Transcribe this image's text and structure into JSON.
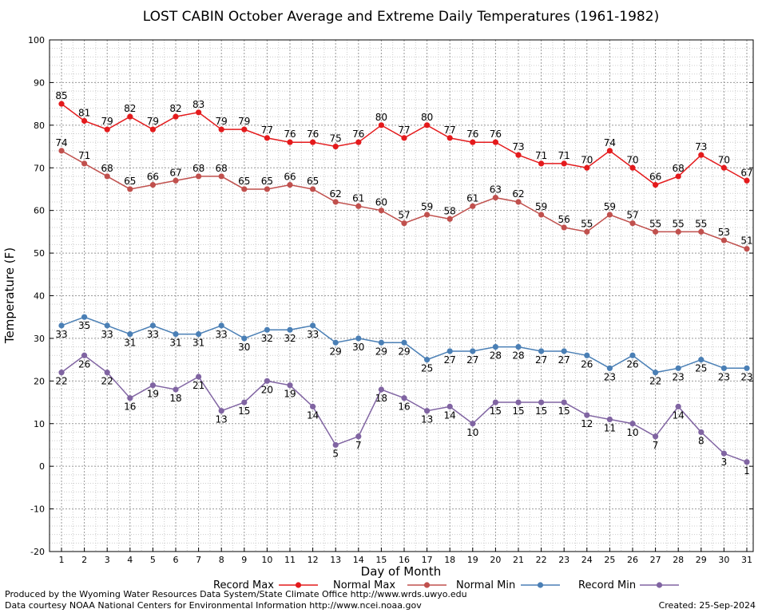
{
  "chart_data": {
    "type": "line",
    "title": "LOST CABIN October Average and Extreme Daily Temperatures (1961-1982)",
    "xlabel": "Day of Month",
    "ylabel": "Temperature (F)",
    "ylim": [
      -20,
      100
    ],
    "yticks": [
      -20,
      -10,
      0,
      10,
      20,
      30,
      40,
      50,
      60,
      70,
      80,
      90,
      100
    ],
    "xlim": [
      1,
      31
    ],
    "x": [
      1,
      2,
      3,
      4,
      5,
      6,
      7,
      8,
      9,
      10,
      11,
      12,
      13,
      14,
      15,
      16,
      17,
      18,
      19,
      20,
      21,
      22,
      23,
      24,
      25,
      26,
      27,
      28,
      29,
      30,
      31
    ],
    "grid": true,
    "legend_position": "bottom",
    "series": [
      {
        "name": "Record Max",
        "color": "#e41a1c",
        "label_position": "above",
        "values": [
          85,
          81,
          79,
          82,
          79,
          82,
          83,
          79,
          79,
          77,
          76,
          76,
          75,
          76,
          80,
          77,
          80,
          77,
          76,
          76,
          73,
          71,
          71,
          70,
          74,
          70,
          66,
          68,
          73,
          70,
          67
        ]
      },
      {
        "name": "Normal Max",
        "color": "#c0504d",
        "label_position": "above",
        "values": [
          74,
          71,
          68,
          65,
          66,
          67,
          68,
          68,
          65,
          65,
          66,
          65,
          62,
          61,
          60,
          57,
          59,
          58,
          61,
          63,
          62,
          59,
          56,
          55,
          59,
          57,
          55,
          55,
          55,
          53,
          51
        ]
      },
      {
        "name": "Normal Min",
        "color": "#4a7fb5",
        "label_position": "below",
        "values": [
          33,
          35,
          33,
          31,
          33,
          31,
          31,
          33,
          30,
          32,
          32,
          33,
          29,
          30,
          29,
          29,
          25,
          27,
          27,
          28,
          28,
          27,
          27,
          26,
          23,
          26,
          22,
          23,
          25,
          23,
          23
        ]
      },
      {
        "name": "Record Min",
        "color": "#8064a2",
        "label_position": "below",
        "values": [
          22,
          26,
          22,
          16,
          19,
          18,
          21,
          13,
          15,
          20,
          19,
          14,
          5,
          7,
          18,
          16,
          13,
          14,
          10,
          15,
          15,
          15,
          15,
          12,
          11,
          10,
          7,
          14,
          8,
          3,
          1
        ]
      }
    ]
  },
  "footer": {
    "produced_by": "Produced by the Wyoming Water Resources Data System/State Climate Office http://www.wrds.uwyo.edu",
    "data_courtesy": "Data courtesy NOAA National Centers for Environmental Information http://www.ncei.noaa.gov",
    "created": "Created:  25-Sep-2024"
  }
}
